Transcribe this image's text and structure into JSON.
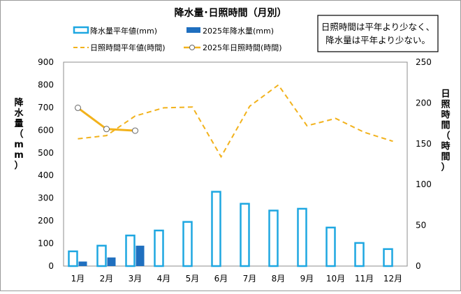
{
  "chart_data": {
    "type": "bar",
    "title": "降水量･日照時間（月別）",
    "categories": [
      "1月",
      "2月",
      "3月",
      "4月",
      "5月",
      "6月",
      "7月",
      "8月",
      "9月",
      "10月",
      "11月",
      "12月"
    ],
    "ylabel_left": "降水量（mm）",
    "ylabel_right": "日照時間（時間）",
    "ylim_left": [
      0,
      900
    ],
    "yticks_left": [
      0,
      100,
      200,
      300,
      400,
      500,
      600,
      700,
      800,
      900
    ],
    "ylim_right": [
      0,
      250
    ],
    "yticks_right": [
      0,
      50,
      100,
      150,
      200,
      250
    ],
    "legend_placement": "top",
    "series": [
      {
        "name": "降水量平年値(mm)",
        "chart": "bar",
        "axis": "left",
        "color": "#1EA7E1",
        "style": "outline",
        "values": [
          65,
          90,
          135,
          157,
          195,
          328,
          275,
          245,
          253,
          170,
          102,
          75
        ]
      },
      {
        "name": "2025年降水量(mm)",
        "chart": "bar",
        "axis": "left",
        "color": "#1F6FBF",
        "style": "filled",
        "values": [
          20,
          38,
          90,
          null,
          null,
          null,
          null,
          null,
          null,
          null,
          null,
          null
        ]
      },
      {
        "name": "日照時間平年値(時間)",
        "chart": "line",
        "axis": "right",
        "color": "#F2B21C",
        "style": "dashed",
        "values": [
          156,
          160,
          184,
          194,
          195,
          134,
          196,
          222,
          172,
          181,
          164,
          153
        ]
      },
      {
        "name": "2025年日照時間(時間)",
        "chart": "line",
        "axis": "right",
        "color": "#F2B21C",
        "style": "solid-markers",
        "values": [
          194,
          168,
          166,
          null,
          null,
          null,
          null,
          null,
          null,
          null,
          null,
          null
        ]
      }
    ],
    "annotation": [
      "日照時間は平年より少なく、",
      "降水量は平年より少ない。"
    ],
    "grid": false
  }
}
